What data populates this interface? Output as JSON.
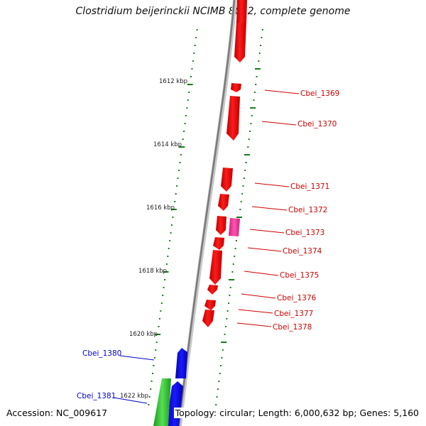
{
  "title": "Clostridium beijerinckii NCIMB 8052, complete genome",
  "footer": {
    "accession": "Accession: NC_009617",
    "topology": "Topology: circular; Length: 6,000,632 bp; Genes: 5,160"
  },
  "colors": {
    "forward_gene": "#ff0000",
    "highlight_gene": "#ff3399",
    "reverse_gene": "#0000ff",
    "rna_gene": "#33cc33",
    "gene_label_right": "#cc0000",
    "gene_label_left": "#0000cc",
    "tick": "#1a7a1a",
    "backbone": "#8a8a8a"
  },
  "scale": {
    "unit": "kbp",
    "labels": [
      "1612 kbp",
      "1614 kbp",
      "1616 kbp",
      "1618 kbp",
      "1620 kbp",
      "1622 kbp"
    ]
  },
  "genes_right": [
    "Cbei_1369",
    "Cbei_1370",
    "Cbei_1371",
    "Cbei_1372",
    "Cbei_1373",
    "Cbei_1374",
    "Cbei_1375",
    "Cbei_1376",
    "Cbei_1377",
    "Cbei_1378"
  ],
  "genes_left": [
    "Cbei_1380",
    "Cbei_1381"
  ]
}
